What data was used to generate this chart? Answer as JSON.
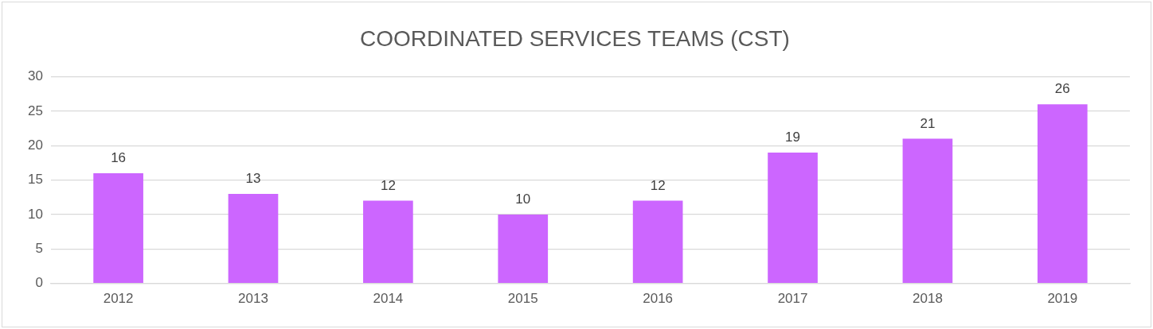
{
  "chart_data": {
    "type": "bar",
    "title": "COORDINATED SERVICES TEAMS (CST)",
    "categories": [
      "2012",
      "2013",
      "2014",
      "2015",
      "2016",
      "2017",
      "2018",
      "2019"
    ],
    "values": [
      16,
      13,
      12,
      10,
      12,
      19,
      21,
      26
    ],
    "color": "#cc66ff",
    "ylim": [
      0,
      30
    ],
    "yticks": [
      0,
      5,
      10,
      15,
      20,
      25,
      30
    ],
    "grid": "y",
    "data_labels": true,
    "legend": false
  }
}
